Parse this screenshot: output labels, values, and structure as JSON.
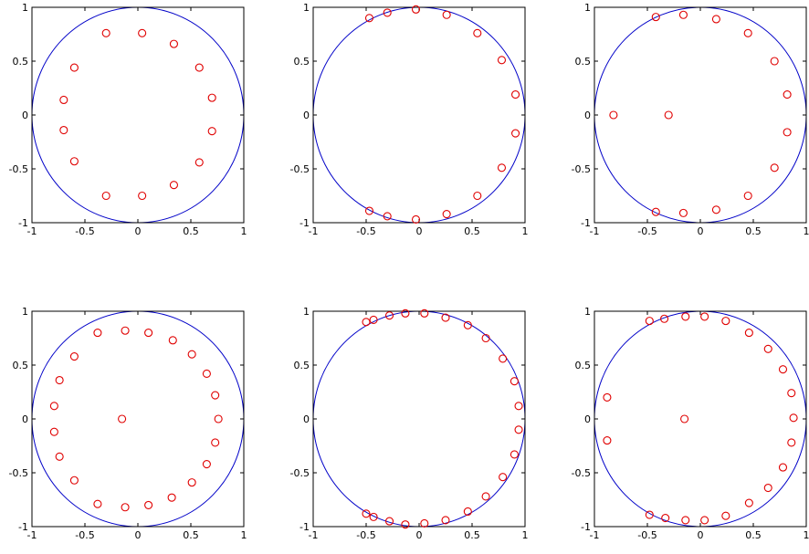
{
  "colors": {
    "circle": "#0000c8",
    "points": "#e00000",
    "axes": "#000000"
  },
  "chart_data": [
    {
      "type": "scatter",
      "xlim": [
        -1,
        1
      ],
      "ylim": [
        -1,
        1
      ],
      "xticks": [
        -1,
        -0.5,
        0,
        0.5,
        1
      ],
      "yticks": [
        -1,
        -0.5,
        0,
        0.5,
        1
      ],
      "xtick_labels": [
        "-1",
        "-0.5",
        "0",
        "0.5",
        "1"
      ],
      "ytick_labels": [
        "-1",
        "-0.5",
        "0",
        "0.5",
        "1"
      ],
      "grid": false,
      "circle": {
        "center": [
          0,
          0
        ],
        "radius": 1
      },
      "points": [
        [
          -0.3,
          0.76
        ],
        [
          0.04,
          0.76
        ],
        [
          0.34,
          0.66
        ],
        [
          0.58,
          0.44
        ],
        [
          0.7,
          0.16
        ],
        [
          0.7,
          -0.15
        ],
        [
          0.58,
          -0.44
        ],
        [
          0.34,
          -0.65
        ],
        [
          0.04,
          -0.75
        ],
        [
          -0.3,
          -0.75
        ],
        [
          -0.6,
          -0.43
        ],
        [
          -0.7,
          -0.14
        ],
        [
          -0.7,
          0.14
        ],
        [
          -0.6,
          0.44
        ]
      ]
    },
    {
      "type": "scatter",
      "xlim": [
        -1,
        1
      ],
      "ylim": [
        -1,
        1
      ],
      "xticks": [
        -1,
        -0.5,
        0,
        0.5,
        1
      ],
      "yticks": [
        -1,
        -0.5,
        0,
        0.5,
        1
      ],
      "xtick_labels": [
        "-1",
        "-0.5",
        "0",
        "0.5",
        "1"
      ],
      "ytick_labels": [
        "-1",
        "-0.5",
        "0",
        "0.5",
        "1"
      ],
      "grid": false,
      "circle": {
        "center": [
          0,
          0
        ],
        "radius": 1
      },
      "points": [
        [
          -0.47,
          0.9
        ],
        [
          -0.3,
          0.95
        ],
        [
          -0.03,
          0.98
        ],
        [
          0.26,
          0.93
        ],
        [
          0.55,
          0.76
        ],
        [
          0.78,
          0.51
        ],
        [
          0.91,
          0.19
        ],
        [
          0.91,
          -0.17
        ],
        [
          0.78,
          -0.49
        ],
        [
          0.55,
          -0.75
        ],
        [
          0.26,
          -0.92
        ],
        [
          -0.03,
          -0.97
        ],
        [
          -0.3,
          -0.94
        ],
        [
          -0.47,
          -0.89
        ]
      ]
    },
    {
      "type": "scatter",
      "xlim": [
        -1,
        1
      ],
      "ylim": [
        -1,
        1
      ],
      "xticks": [
        -1,
        -0.5,
        0,
        0.5,
        1
      ],
      "yticks": [
        -1,
        -0.5,
        0,
        0.5,
        1
      ],
      "xtick_labels": [
        "-1",
        "-0.5",
        "0",
        "0.5",
        "1"
      ],
      "ytick_labels": [
        "-1",
        "-0.5",
        "0",
        "0.5",
        "1"
      ],
      "grid": false,
      "circle": {
        "center": [
          0,
          0
        ],
        "radius": 1
      },
      "points": [
        [
          -0.82,
          0.0
        ],
        [
          -0.3,
          0.0
        ],
        [
          -0.42,
          0.91
        ],
        [
          -0.16,
          0.93
        ],
        [
          0.15,
          0.89
        ],
        [
          0.45,
          0.76
        ],
        [
          0.7,
          0.5
        ],
        [
          0.82,
          0.19
        ],
        [
          0.82,
          -0.16
        ],
        [
          0.7,
          -0.49
        ],
        [
          0.45,
          -0.75
        ],
        [
          0.15,
          -0.88
        ],
        [
          -0.16,
          -0.91
        ],
        [
          -0.42,
          -0.9
        ]
      ]
    },
    {
      "type": "scatter",
      "xlim": [
        -1,
        1
      ],
      "ylim": [
        -1,
        1
      ],
      "xticks": [
        -1,
        -0.5,
        0,
        0.5,
        1
      ],
      "yticks": [
        -1,
        -0.5,
        0,
        0.5,
        1
      ],
      "xtick_labels": [
        "-1",
        "-0.5",
        "0",
        "0.5",
        "1"
      ],
      "ytick_labels": [
        "-1",
        "-0.5",
        "0",
        "0.5",
        "1"
      ],
      "grid": false,
      "circle": {
        "center": [
          0,
          0
        ],
        "radius": 1
      },
      "points": [
        [
          -0.15,
          0.0
        ],
        [
          -0.38,
          0.8
        ],
        [
          -0.12,
          0.82
        ],
        [
          0.1,
          0.8
        ],
        [
          0.33,
          0.73
        ],
        [
          0.51,
          0.6
        ],
        [
          0.65,
          0.42
        ],
        [
          0.73,
          0.22
        ],
        [
          0.76,
          0.0
        ],
        [
          0.73,
          -0.22
        ],
        [
          0.65,
          -0.42
        ],
        [
          0.51,
          -0.59
        ],
        [
          0.32,
          -0.73
        ],
        [
          0.1,
          -0.8
        ],
        [
          -0.12,
          -0.82
        ],
        [
          -0.38,
          -0.79
        ],
        [
          -0.6,
          -0.57
        ],
        [
          -0.74,
          -0.35
        ],
        [
          -0.79,
          -0.12
        ],
        [
          -0.79,
          0.12
        ],
        [
          -0.74,
          0.36
        ],
        [
          -0.6,
          0.58
        ]
      ]
    },
    {
      "type": "scatter",
      "xlim": [
        -1,
        1
      ],
      "ylim": [
        -1,
        1
      ],
      "xticks": [
        -1,
        -0.5,
        0,
        0.5,
        1
      ],
      "yticks": [
        -1,
        -0.5,
        0,
        0.5,
        1
      ],
      "xtick_labels": [
        "-1",
        "-0.5",
        "0",
        "0.5",
        "1"
      ],
      "ytick_labels": [
        "-1",
        "-0.5",
        "0",
        "0.5",
        "1"
      ],
      "grid": false,
      "circle": {
        "center": [
          0,
          0
        ],
        "radius": 1
      },
      "points": [
        [
          -0.5,
          0.9
        ],
        [
          -0.43,
          0.92
        ],
        [
          -0.28,
          0.96
        ],
        [
          -0.13,
          0.98
        ],
        [
          0.05,
          0.98
        ],
        [
          0.25,
          0.94
        ],
        [
          0.46,
          0.87
        ],
        [
          0.63,
          0.75
        ],
        [
          0.79,
          0.56
        ],
        [
          0.9,
          0.35
        ],
        [
          0.94,
          0.12
        ],
        [
          0.94,
          -0.1
        ],
        [
          0.9,
          -0.33
        ],
        [
          0.79,
          -0.54
        ],
        [
          0.63,
          -0.72
        ],
        [
          0.46,
          -0.86
        ],
        [
          0.25,
          -0.94
        ],
        [
          0.05,
          -0.97
        ],
        [
          -0.13,
          -0.98
        ],
        [
          -0.28,
          -0.95
        ],
        [
          -0.43,
          -0.91
        ],
        [
          -0.5,
          -0.88
        ]
      ]
    },
    {
      "type": "scatter",
      "xlim": [
        -1,
        1
      ],
      "ylim": [
        -1,
        1
      ],
      "xticks": [
        -1,
        -0.5,
        0,
        0.5,
        1
      ],
      "yticks": [
        -1,
        -0.5,
        0,
        0.5,
        1
      ],
      "xtick_labels": [
        "-1",
        "-0.5",
        "0",
        "0.5",
        "1"
      ],
      "ytick_labels": [
        "-1",
        "-0.5",
        "0",
        "0.5",
        "1"
      ],
      "grid": false,
      "circle": {
        "center": [
          0,
          0
        ],
        "radius": 1
      },
      "points": [
        [
          -0.88,
          0.2
        ],
        [
          -0.88,
          -0.2
        ],
        [
          -0.15,
          0.0
        ],
        [
          -0.48,
          0.91
        ],
        [
          -0.34,
          0.93
        ],
        [
          -0.14,
          0.95
        ],
        [
          0.04,
          0.95
        ],
        [
          0.24,
          0.91
        ],
        [
          0.46,
          0.8
        ],
        [
          0.64,
          0.65
        ],
        [
          0.78,
          0.46
        ],
        [
          0.86,
          0.24
        ],
        [
          0.88,
          0.01
        ],
        [
          0.86,
          -0.22
        ],
        [
          0.78,
          -0.45
        ],
        [
          0.64,
          -0.64
        ],
        [
          0.46,
          -0.78
        ],
        [
          0.24,
          -0.9
        ],
        [
          0.04,
          -0.94
        ],
        [
          -0.14,
          -0.94
        ],
        [
          -0.33,
          -0.92
        ],
        [
          -0.48,
          -0.89
        ]
      ]
    }
  ]
}
